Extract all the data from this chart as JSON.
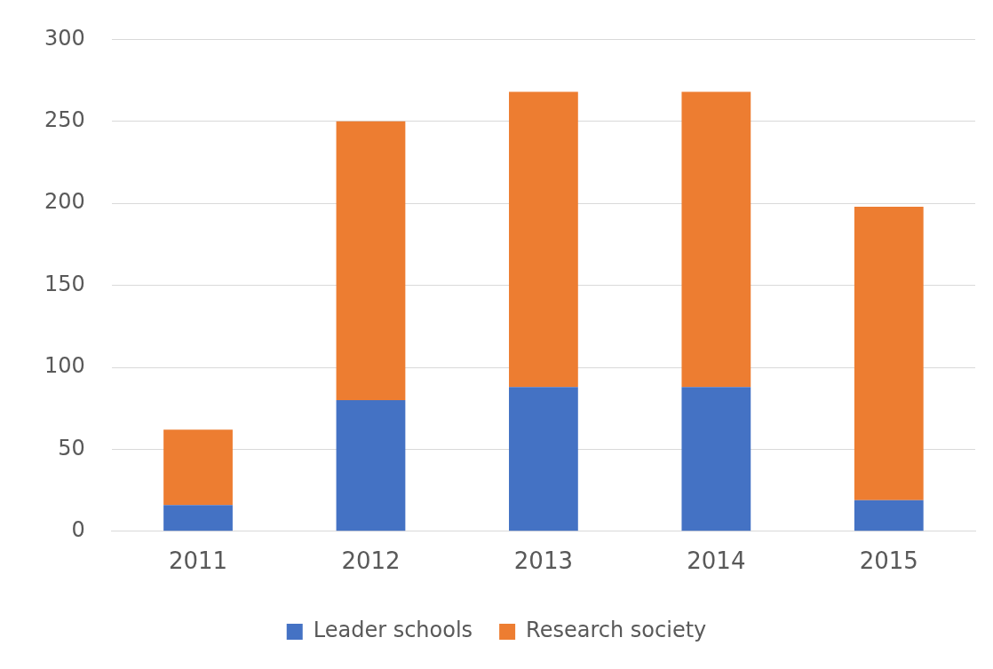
{
  "chart_data": {
    "type": "bar",
    "stacked": true,
    "categories": [
      "2011",
      "2012",
      "2013",
      "2014",
      "2015"
    ],
    "series": [
      {
        "name": "Leader schools",
        "color": "#4472c4",
        "values": [
          16,
          80,
          88,
          88,
          19
        ]
      },
      {
        "name": "Research society",
        "color": "#ed7d31",
        "values": [
          46,
          170,
          180,
          180,
          179
        ]
      }
    ],
    "ylim": [
      0,
      300
    ],
    "yticks": [
      0,
      50,
      100,
      150,
      200,
      250,
      300
    ],
    "grid": "y",
    "legend": "bottom"
  }
}
